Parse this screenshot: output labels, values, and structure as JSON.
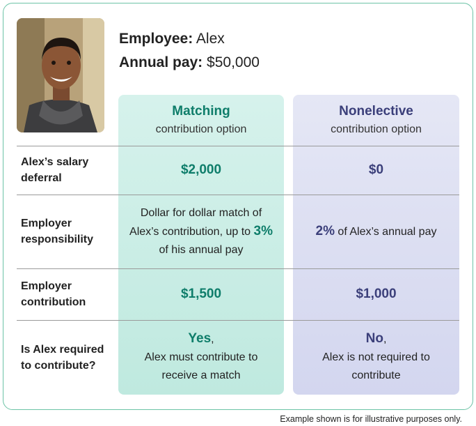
{
  "header": {
    "employee_label": "Employee:",
    "employee_name": "Alex",
    "pay_label": "Annual pay:",
    "pay_value": "$50,000"
  },
  "columns": [
    {
      "title": "Matching",
      "subtitle": "contribution option"
    },
    {
      "title": "Nonelective",
      "subtitle": "contribution option"
    }
  ],
  "rows": [
    {
      "label": "Alex’s salary deferral",
      "cells": [
        {
          "bold": "$2,000"
        },
        {
          "bold": "$0"
        }
      ]
    },
    {
      "label": "Employer responsibility",
      "cells": [
        {
          "before": "Dollar for dollar match of Alex’s contribution, up to ",
          "bold": "3%",
          "after": " of his annual pay"
        },
        {
          "bold": "2%",
          "after": " of Alex’s annual pay"
        }
      ]
    },
    {
      "label": "Employer contribution",
      "cells": [
        {
          "bold": "$1,500"
        },
        {
          "bold": "$1,000"
        }
      ]
    },
    {
      "label": "Is Alex required to contribute?",
      "cells": [
        {
          "bold": "Yes",
          "after": ",",
          "note": "Alex must contribute to receive a match"
        },
        {
          "bold": "No",
          "after": ",",
          "note": "Alex is not required to contribute"
        }
      ]
    }
  ],
  "footer": "Example shown is for illustrative purposes only."
}
